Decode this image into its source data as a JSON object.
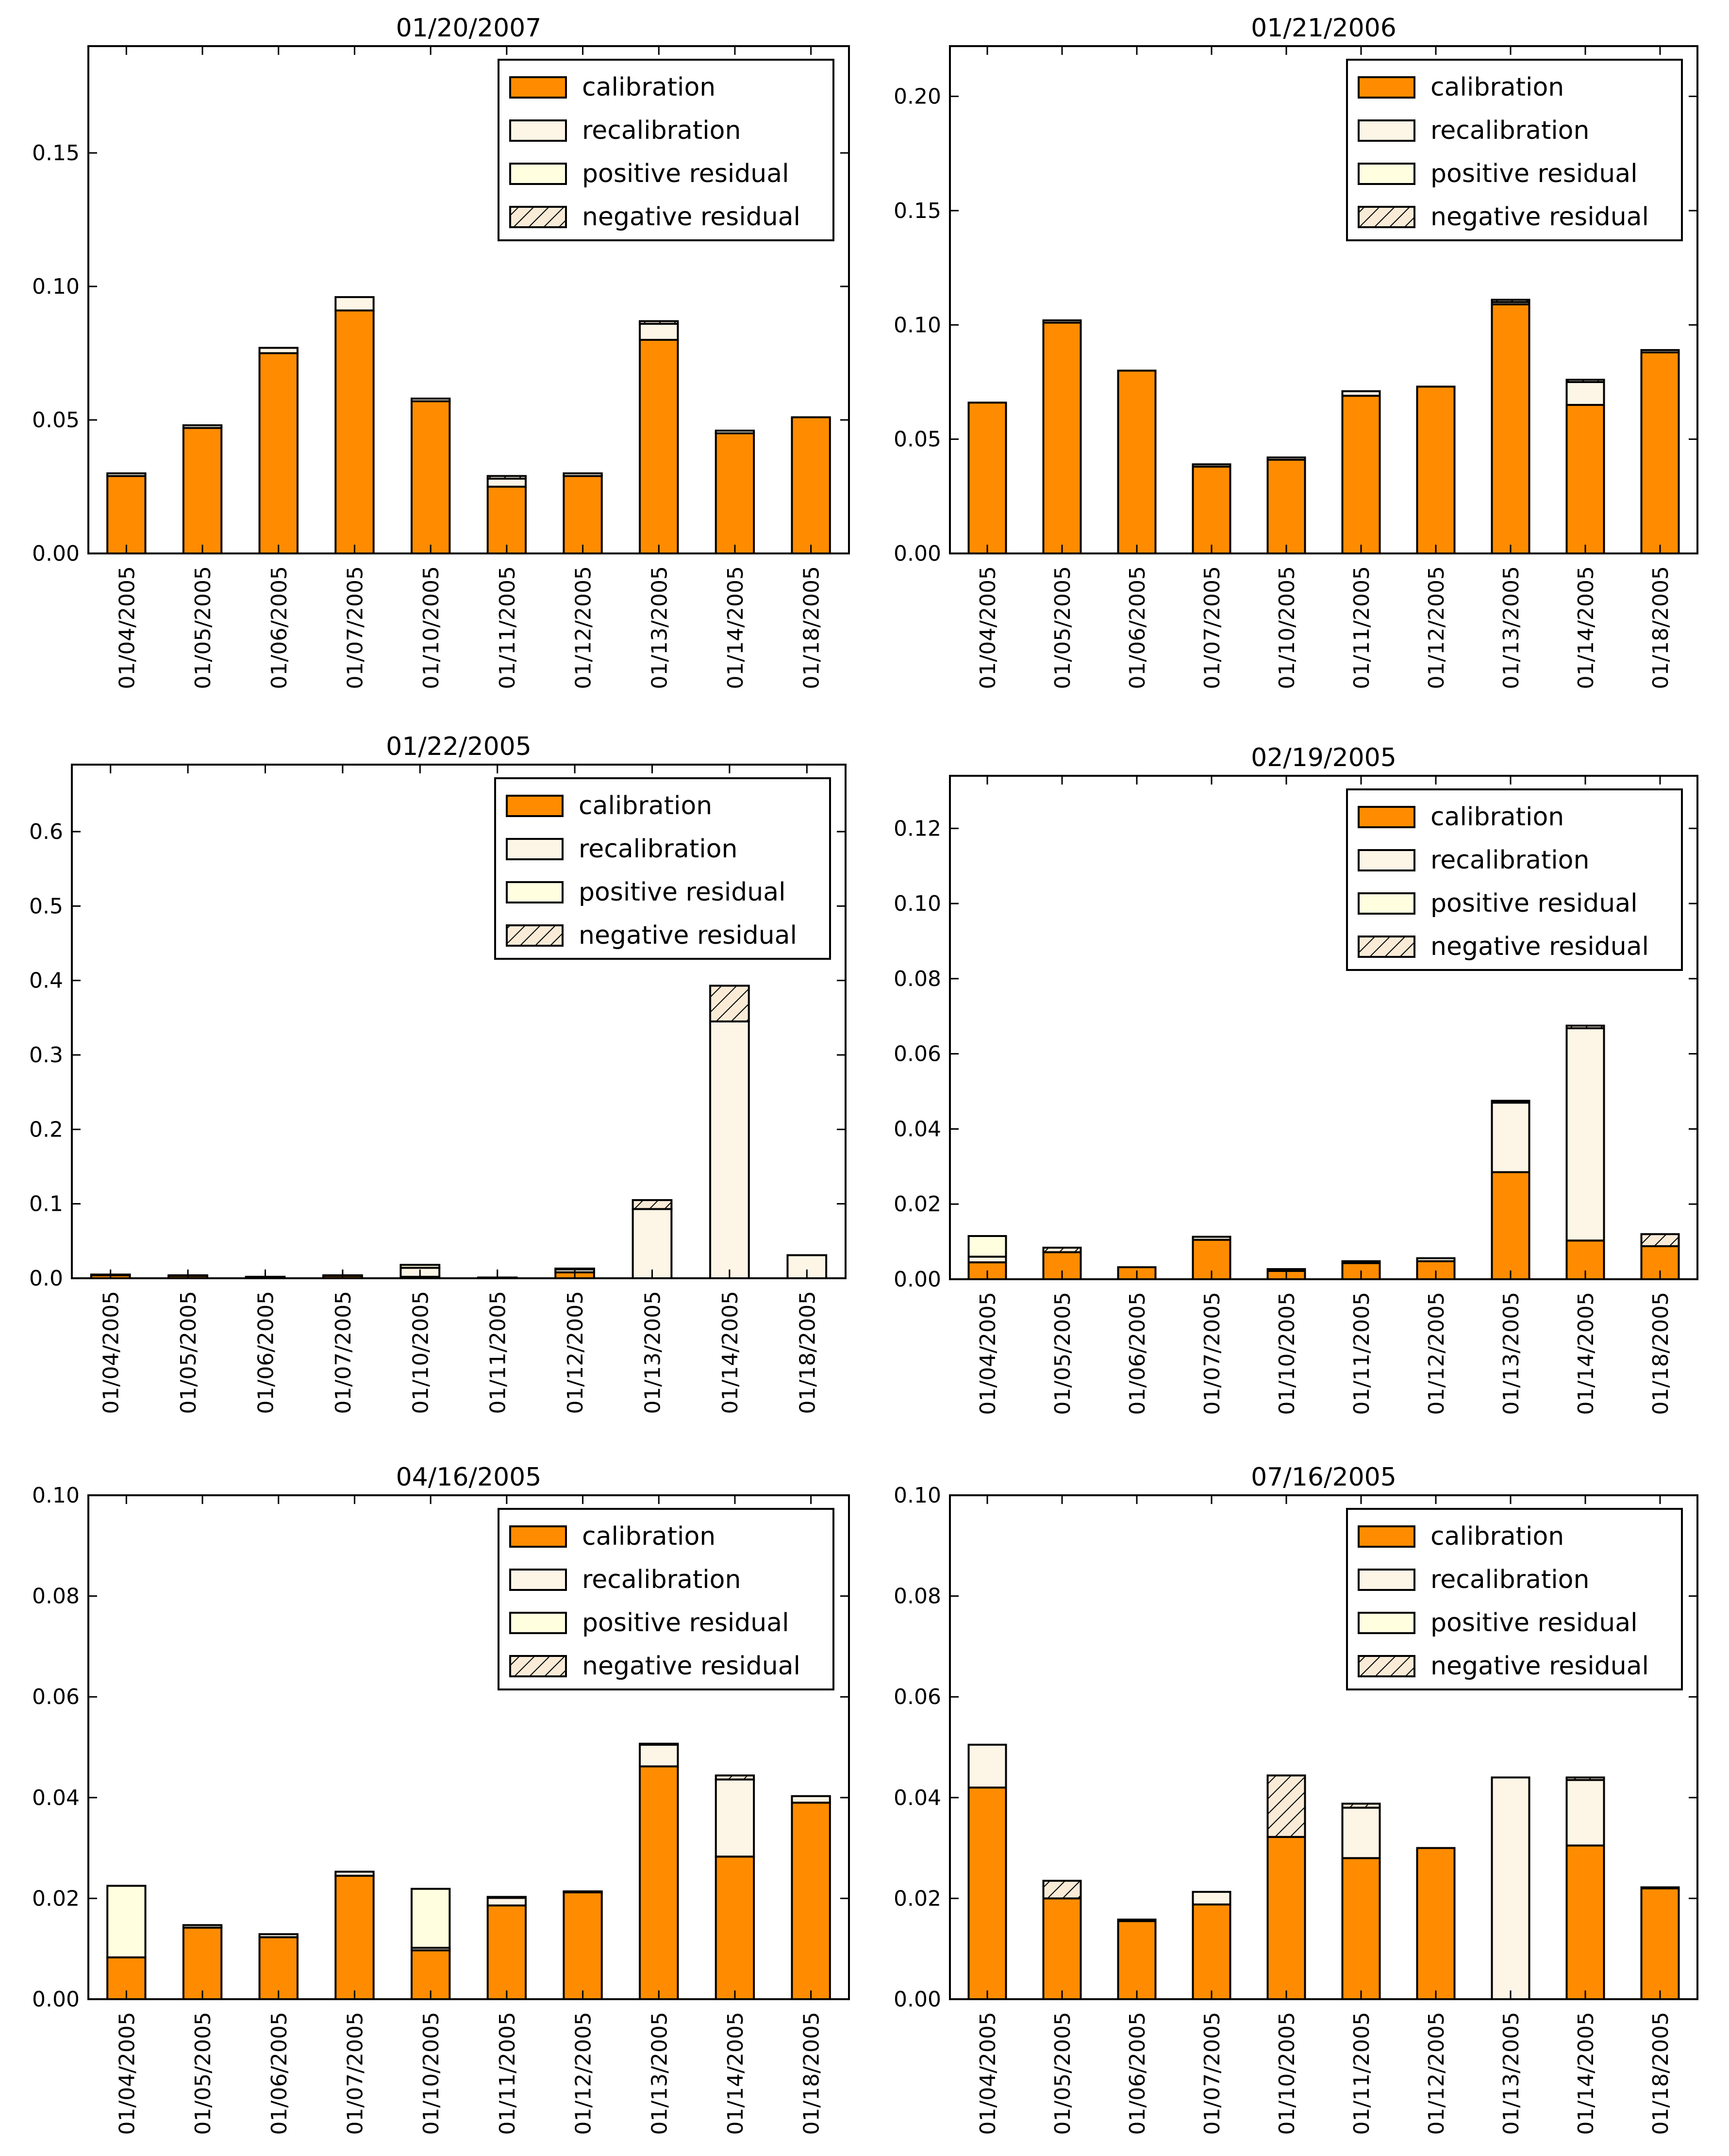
{
  "legend_labels": [
    "calibration",
    "recalibration",
    "positive residual",
    "negative residual"
  ],
  "colors": {
    "calibration": "#ff8c00",
    "recalibration": "#fdf5e6",
    "positive_residual": "#ffffe0",
    "negative_residual": "#faebd7",
    "axis": "#000000"
  },
  "chart_data": [
    {
      "type": "bar",
      "stacked": true,
      "title": "01/20/2007",
      "categories": [
        "01/04/2005",
        "01/05/2005",
        "01/06/2005",
        "01/07/2005",
        "01/10/2005",
        "01/11/2005",
        "01/12/2005",
        "01/13/2005",
        "01/14/2005",
        "01/18/2005"
      ],
      "ylim": [
        0,
        0.19
      ],
      "yticks": [
        "0.00",
        "0.05",
        "0.10",
        "0.15"
      ],
      "legend_position": "upper right",
      "series": [
        {
          "name": "calibration",
          "values": [
            0.029,
            0.047,
            0.075,
            0.091,
            0.057,
            0.025,
            0.029,
            0.08,
            0.045,
            0.051
          ]
        },
        {
          "name": "recalibration",
          "values": [
            0.001,
            0.001,
            0.002,
            0.005,
            0.001,
            0.003,
            0.001,
            0.006,
            0.001,
            0.0
          ]
        },
        {
          "name": "positive residual",
          "values": [
            0.0,
            0.0,
            0.0,
            0.0,
            0.0,
            0.0,
            0.0,
            0.0,
            0.0,
            0.0
          ]
        },
        {
          "name": "negative residual",
          "values": [
            0.0,
            0.0,
            0.0,
            0.0,
            0.0,
            0.001,
            0.0,
            0.001,
            0.0,
            0.0
          ]
        }
      ]
    },
    {
      "type": "bar",
      "stacked": true,
      "title": "01/21/2006",
      "categories": [
        "01/04/2005",
        "01/05/2005",
        "01/06/2005",
        "01/07/2005",
        "01/10/2005",
        "01/11/2005",
        "01/12/2005",
        "01/13/2005",
        "01/14/2005",
        "01/18/2005"
      ],
      "ylim": [
        0,
        0.222
      ],
      "yticks": [
        "0.00",
        "0.05",
        "0.10",
        "0.15",
        "0.20"
      ],
      "legend_position": "upper right",
      "series": [
        {
          "name": "calibration",
          "values": [
            0.066,
            0.101,
            0.08,
            0.038,
            0.041,
            0.069,
            0.073,
            0.109,
            0.065,
            0.088
          ]
        },
        {
          "name": "recalibration",
          "values": [
            0.0,
            0.001,
            0.0,
            0.001,
            0.001,
            0.002,
            0.0,
            0.001,
            0.01,
            0.001
          ]
        },
        {
          "name": "positive residual",
          "values": [
            0.0,
            0.0,
            0.0,
            0.0,
            0.0,
            0.0,
            0.0,
            0.0,
            0.0,
            0.0
          ]
        },
        {
          "name": "negative residual",
          "values": [
            0.0,
            0.0,
            0.0,
            0.0,
            0.0,
            0.0,
            0.0,
            0.001,
            0.001,
            0.0
          ]
        }
      ]
    },
    {
      "type": "bar",
      "stacked": true,
      "title": "01/22/2005",
      "categories": [
        "01/04/2005",
        "01/05/2005",
        "01/06/2005",
        "01/07/2005",
        "01/10/2005",
        "01/11/2005",
        "01/12/2005",
        "01/13/2005",
        "01/14/2005",
        "01/18/2005"
      ],
      "ylim": [
        0,
        0.69
      ],
      "yticks": [
        "0.0",
        "0.1",
        "0.2",
        "0.3",
        "0.4",
        "0.5",
        "0.6"
      ],
      "legend_position": "upper right",
      "series": [
        {
          "name": "calibration",
          "values": [
            0.004,
            0.003,
            0.002,
            0.003,
            0.002,
            0.001,
            0.008,
            0.0,
            0.0,
            0.0
          ]
        },
        {
          "name": "recalibration",
          "values": [
            0.0,
            0.001,
            0.0,
            0.0,
            0.012,
            0.0,
            0.004,
            0.093,
            0.345,
            0.031
          ]
        },
        {
          "name": "positive residual",
          "values": [
            0.001,
            0.0,
            0.0,
            0.001,
            0.004,
            0.0,
            0.0,
            0.0,
            0.0,
            0.0
          ]
        },
        {
          "name": "negative residual",
          "values": [
            0.0,
            0.0,
            0.0,
            0.0,
            0.0,
            0.0,
            0.001,
            0.012,
            0.048,
            0.0
          ]
        }
      ]
    },
    {
      "type": "bar",
      "stacked": true,
      "title": "02/19/2005",
      "categories": [
        "01/04/2005",
        "01/05/2005",
        "01/06/2005",
        "01/07/2005",
        "01/10/2005",
        "01/11/2005",
        "01/12/2005",
        "01/13/2005",
        "01/14/2005",
        "01/18/2005"
      ],
      "ylim": [
        0,
        0.134
      ],
      "yticks": [
        "0.00",
        "0.02",
        "0.04",
        "0.06",
        "0.08",
        "0.10",
        "0.12"
      ],
      "legend_position": "upper right",
      "series": [
        {
          "name": "calibration",
          "values": [
            0.0045,
            0.0072,
            0.0032,
            0.0105,
            0.0022,
            0.0043,
            0.0048,
            0.0285,
            0.0103,
            0.0088
          ]
        },
        {
          "name": "recalibration",
          "values": [
            0.0015,
            0.0,
            0.0,
            0.0008,
            0.0005,
            0.0005,
            0.0008,
            0.0185,
            0.0565,
            0.0
          ]
        },
        {
          "name": "positive residual",
          "values": [
            0.0055,
            0.0,
            0.0,
            0.0,
            0.0,
            0.0,
            0.0,
            0.0005,
            0.0,
            0.0
          ]
        },
        {
          "name": "negative residual",
          "values": [
            0.0,
            0.0012,
            0.0,
            0.0,
            0.0,
            0.0,
            0.0,
            0.0,
            0.0007,
            0.0032
          ]
        }
      ]
    },
    {
      "type": "bar",
      "stacked": true,
      "title": "04/16/2005",
      "categories": [
        "01/04/2005",
        "01/05/2005",
        "01/06/2005",
        "01/07/2005",
        "01/10/2005",
        "01/11/2005",
        "01/12/2005",
        "01/13/2005",
        "01/14/2005",
        "01/18/2005"
      ],
      "ylim": [
        0,
        0.1
      ],
      "yticks": [
        "0.00",
        "0.02",
        "0.04",
        "0.06",
        "0.08",
        "0.10"
      ],
      "legend_position": "upper right",
      "series": [
        {
          "name": "calibration",
          "values": [
            0.0083,
            0.0142,
            0.0123,
            0.0245,
            0.0097,
            0.0186,
            0.0212,
            0.0462,
            0.0283,
            0.039
          ]
        },
        {
          "name": "recalibration",
          "values": [
            0.0,
            0.0005,
            0.0006,
            0.0008,
            0.0005,
            0.0015,
            0.0002,
            0.0043,
            0.0153,
            0.0013
          ]
        },
        {
          "name": "positive residual",
          "values": [
            0.0142,
            0.0,
            0.0,
            0.0,
            0.0117,
            0.0,
            0.0,
            0.0,
            0.0,
            0.0
          ]
        },
        {
          "name": "negative residual",
          "values": [
            0.0,
            0.0,
            0.0,
            0.0,
            0.0,
            0.0002,
            0.0,
            0.0002,
            0.0008,
            0.0
          ]
        }
      ]
    },
    {
      "type": "bar",
      "stacked": true,
      "title": "07/16/2005",
      "categories": [
        "01/04/2005",
        "01/05/2005",
        "01/06/2005",
        "01/07/2005",
        "01/10/2005",
        "01/11/2005",
        "01/12/2005",
        "01/13/2005",
        "01/14/2005",
        "01/18/2005"
      ],
      "ylim": [
        0,
        0.1
      ],
      "yticks": [
        "0.00",
        "0.02",
        "0.04",
        "0.06",
        "0.08",
        "0.10"
      ],
      "legend_position": "upper right",
      "series": [
        {
          "name": "calibration",
          "values": [
            0.042,
            0.02,
            0.0155,
            0.0188,
            0.0322,
            0.028,
            0.03,
            0.0,
            0.0305,
            0.022
          ]
        },
        {
          "name": "recalibration",
          "values": [
            0.0085,
            0.0,
            0.0003,
            0.0025,
            0.0,
            0.01,
            0.0,
            0.044,
            0.013,
            0.0002
          ]
        },
        {
          "name": "positive residual",
          "values": [
            0.0,
            0.0,
            0.0,
            0.0,
            0.0,
            0.0,
            0.0,
            0.0,
            0.0,
            0.0
          ]
        },
        {
          "name": "negative residual",
          "values": [
            0.0,
            0.0035,
            0.0,
            0.0,
            0.0122,
            0.0008,
            0.0,
            0.0,
            0.0005,
            0.0
          ]
        }
      ]
    }
  ]
}
